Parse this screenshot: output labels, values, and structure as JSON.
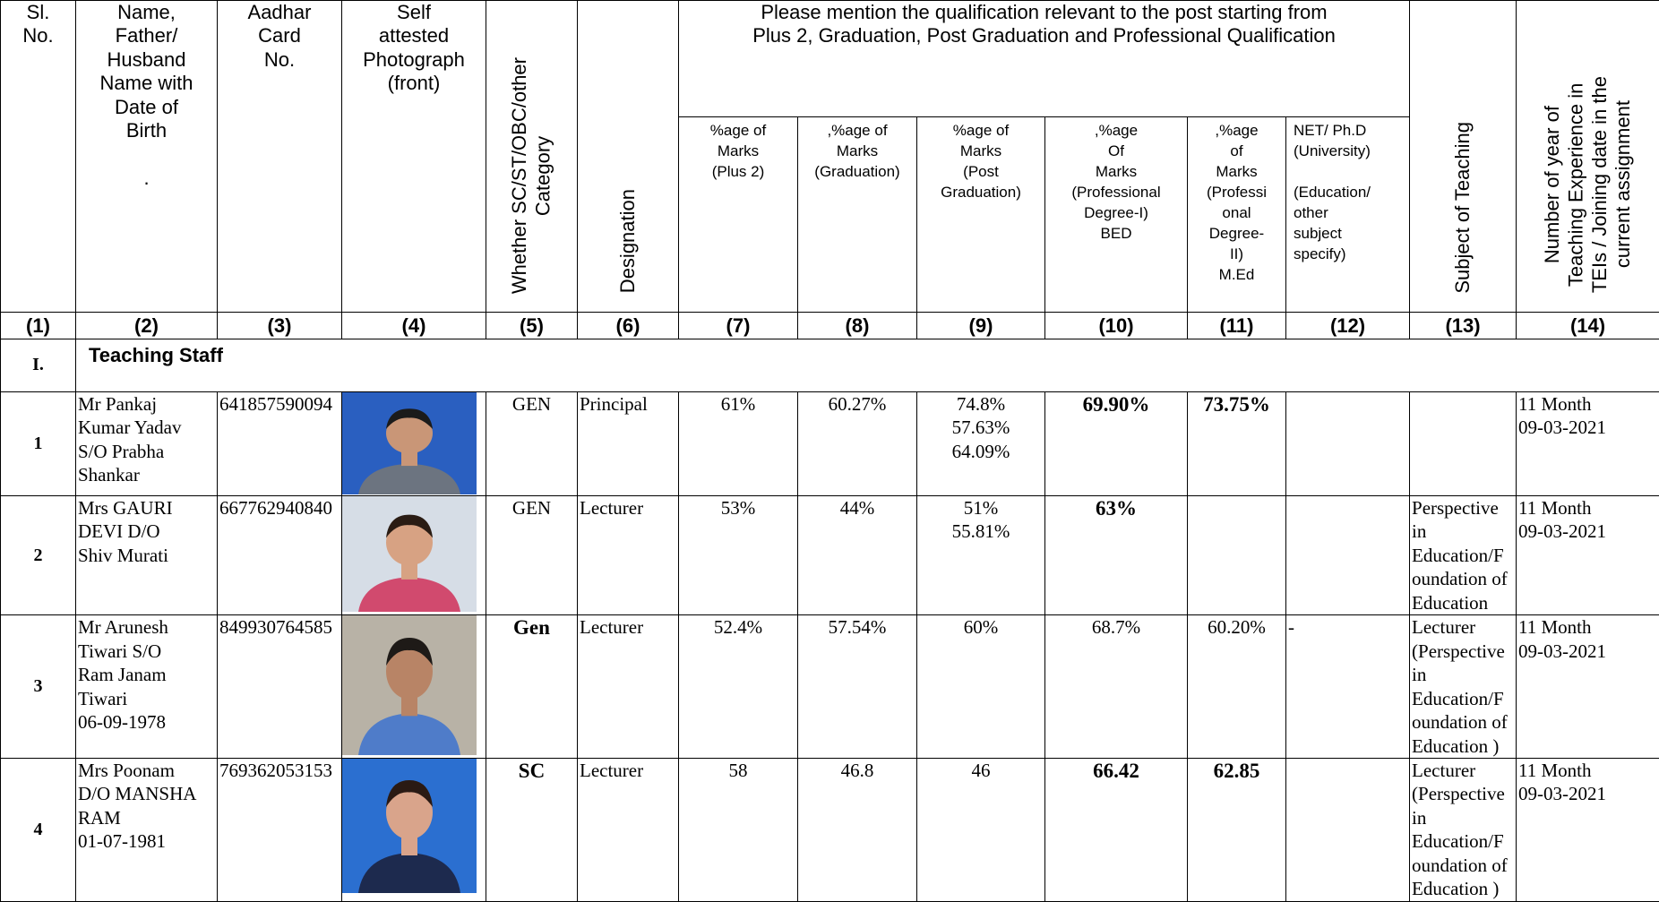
{
  "header": {
    "columns": [
      "Sl.\nNo.",
      "Name,\nFather/\nHusband\nName with\nDate of\nBirth\n\n.",
      "Aadhar\nCard\nNo.",
      "Self\nattested\nPhotograph\n(front)",
      "Whether SC/ST/OBC/other\nCategory",
      "Designation",
      "Subject of Teaching",
      "Number of year of\nTeaching Experience in\nTEIs / Joining date in the\ncurrent assignment"
    ],
    "group_title": "Please mention the qualification relevant to the post starting from\nPlus 2, Graduation, Post Graduation and Professional Qualification",
    "subcolumns": [
      "%age of\nMarks\n(Plus 2)",
      ",%age of\nMarks\n(Graduation)",
      "%age of\nMarks\n(Post\nGraduation)",
      ",%age\nOf\nMarks\n(Professional\nDegree-I)\nBED",
      ",%age\nof\nMarks\n(Professi\nonal\nDegree-\nII)\nM.Ed",
      "NET/ Ph.D\n(University)\n\n(Education/\nother\nsubject\nspecify)"
    ],
    "column_numbers": [
      "(1)",
      "(2)",
      "(3)",
      "(4)",
      "(5)",
      "(6)",
      "(7)",
      "(8)",
      "(9)",
      "(10)",
      "(11)",
      "(12)",
      "(13)",
      "(14)"
    ]
  },
  "section": {
    "number": "I.",
    "title": "Teaching Staff"
  },
  "rows": [
    {
      "sl": "1",
      "name": "Mr Pankaj\nKumar Yadav\nS/O Prabha\nShankar",
      "aadhar": "641857590094",
      "category": "GEN",
      "designation": "Principal",
      "plus2": "61%",
      "graduation": "60.27%",
      "post_graduation": "74.8%\n57.63%\n64.09%",
      "bed": "69.90%",
      "med": "73.75%",
      "experience": "11 Month\n09-03-2021"
    },
    {
      "sl": "2",
      "name": "Mrs GAURI\nDEVI D/O\nShiv Murati",
      "aadhar": "667762940840",
      "category": "GEN",
      "designation": "Lecturer",
      "plus2": "53%",
      "graduation": "44%",
      "post_graduation": "51%\n55.81%",
      "bed": "63%",
      "subject": "Perspective\nin\nEducation/F\noundation of\nEducation",
      "experience": "11 Month\n09-03-2021"
    },
    {
      "sl": "3",
      "name": "Mr  Arunesh\nTiwari S/O\nRam Janam\nTiwari\n06-09-1978",
      "aadhar": "849930764585",
      "category": "Gen",
      "designation": "Lecturer",
      "plus2": "52.4%",
      "graduation": "57.54%",
      "post_graduation": "60%",
      "bed": "68.7%",
      "med": "60.20%",
      "net": "-",
      "subject": "Lecturer\n(Perspective\nin\nEducation/F\noundation of\nEducation )",
      "experience": "11 Month\n09-03-2021"
    },
    {
      "sl": "4",
      "name": "Mrs Poonam\nD/O MANSHA\nRAM\n01-07-1981",
      "aadhar": "769362053153",
      "category": "SC",
      "designation": "Lecturer",
      "plus2": "58",
      "graduation": "46.8",
      "post_graduation": "46",
      "bed": "66.42",
      "med": "62.85",
      "subject": "Lecturer\n(Perspective\nin\nEducation/F\noundation of\nEducation )",
      "experience": "11 Month\n09-03-2021"
    }
  ]
}
